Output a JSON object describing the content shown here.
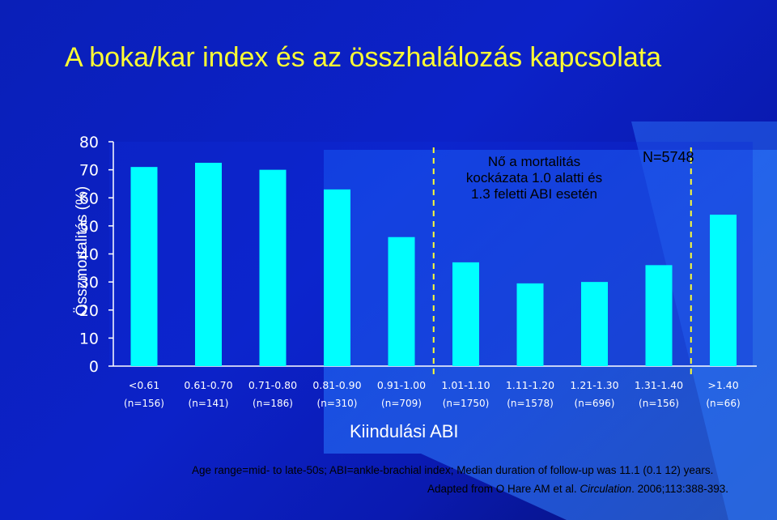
{
  "title": "A boka/kar index és az összhalálozás kapcsolata",
  "annotation": {
    "lines": [
      "Nő a mortalitás",
      "kockázata 1.0 alatti és",
      "1.3 feletti ABI esetén"
    ]
  },
  "n_total": "N=5748",
  "footnote": {
    "line1": "Age range=mid- to late-50s; ABI=ankle-brachial index; Median duration of follow-up was 11.1 (0.1 12) years.",
    "line2_prefix": "Adapted from O Hare AM et al. ",
    "line2_journal": "Circulation",
    "line2_suffix": ". 2006;113:388-393."
  },
  "colors": {
    "bar": "#00ffff",
    "title": "#ffff33",
    "dashed": "#ffff33",
    "text": "#ffffff"
  },
  "chart_data": {
    "type": "bar",
    "xlabel": "Kiindulási ABI",
    "ylabel": "Összmortalitás (%)",
    "ylim": [
      0,
      80
    ],
    "yticks": [
      0,
      10,
      20,
      30,
      40,
      50,
      60,
      70,
      80
    ],
    "categories": [
      "<0.61",
      "0.61-0.70",
      "0.71-0.80",
      "0.81-0.90",
      "0.91-1.00",
      "1.01-1.10",
      "1.11-1.20",
      "1.21-1.30",
      "1.31-1.40",
      ">1.40"
    ],
    "n_labels": [
      "(n=156)",
      "(n=141)",
      "(n=186)",
      "(n=310)",
      "(n=709)",
      "(n=1750)",
      "(n=1578)",
      "(n=696)",
      "(n=156)",
      "(n=66)"
    ],
    "values": [
      71,
      72.5,
      70,
      63,
      46,
      37,
      29.5,
      30,
      36,
      54
    ],
    "dashed_lines_between": [
      [
        4,
        5
      ],
      [
        8,
        9
      ]
    ]
  }
}
